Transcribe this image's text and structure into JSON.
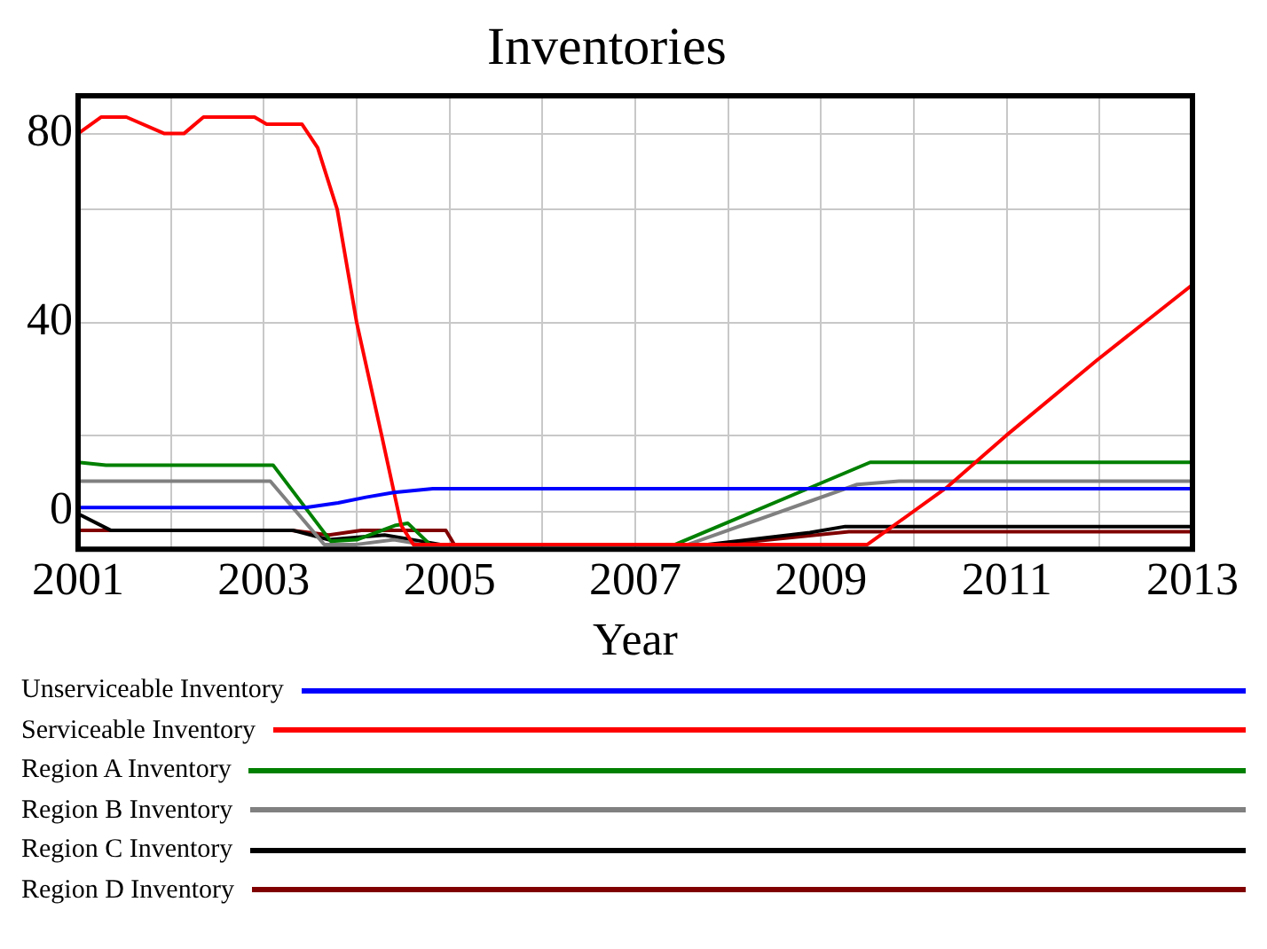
{
  "chart_data": {
    "type": "line",
    "title": "Inventories",
    "xlabel": "Year",
    "xlim": [
      2001,
      2013
    ],
    "xticks": [
      2001,
      {
        "value": 2002,
        "label": null
      },
      2003,
      {
        "value": 2004,
        "label": null
      },
      2005,
      {
        "value": 2006,
        "label": null
      },
      2007,
      {
        "value": 2008,
        "label": null
      },
      2009,
      {
        "value": 2010,
        "label": null
      },
      2011,
      {
        "value": 2012,
        "label": null
      },
      2013
    ],
    "ylim": [
      -8,
      88
    ],
    "yticks": [
      0,
      {
        "value": 16,
        "label": null
      },
      40,
      {
        "value": 64,
        "label": null
      },
      80
    ],
    "grid": true,
    "legend": "bottom",
    "marker": "none",
    "line_style": "solid",
    "series": [
      {
        "name": "Unserviceable Inventory",
        "color": "#0000ff",
        "x": [
          2001,
          2003.45,
          2003.8,
          2004.1,
          2004.4,
          2004.82,
          2013
        ],
        "values": [
          0.8,
          0.8,
          1.8,
          3,
          4,
          4.8,
          4.8
        ]
      },
      {
        "name": "Serviceable Inventory",
        "color": "#ff0000",
        "x": [
          2001,
          2001.25,
          2001.52,
          2001.93,
          2002.14,
          2002.35,
          2002.9,
          2003.03,
          2003.41,
          2003.58,
          2003.79,
          2004,
          2004.27,
          2004.48,
          2004.61,
          2009.5,
          2010.35,
          2010.99,
          2011.97,
          2013
        ],
        "values": [
          80,
          83.5,
          83.5,
          80,
          80,
          83.5,
          83.5,
          82,
          82,
          77,
          64,
          40,
          16,
          -3,
          -7,
          -7,
          5,
          16,
          32,
          48
        ]
      },
      {
        "name": "Region A Inventory",
        "color": "#008000",
        "x": [
          2001,
          2001.3,
          2003.1,
          2003.72,
          2004,
          2004.41,
          2004.55,
          2004.79,
          2007.43,
          2008.88,
          2009.53,
          2013
        ],
        "values": [
          10.4,
          9.8,
          9.8,
          -6.3,
          -6,
          -3,
          -2.5,
          -7,
          -7,
          5,
          10.4,
          10.4
        ]
      },
      {
        "name": "Region B Inventory",
        "color": "#808080",
        "x": [
          2001,
          2003.07,
          2003.65,
          2004,
          2004.4,
          2004.7,
          2007.57,
          2009.39,
          2009.84,
          2013
        ],
        "values": [
          6.4,
          6.4,
          -7,
          -7,
          -6,
          -7,
          -7,
          5.7,
          6.4,
          6.4
        ]
      },
      {
        "name": "Region C Inventory",
        "color": "#000000",
        "x": [
          2001,
          2001.35,
          2003.31,
          2003.7,
          2004.3,
          2004.9,
          2007.78,
          2008.88,
          2009.26,
          2013
        ],
        "values": [
          -0.5,
          -4,
          -4,
          -6,
          -5,
          -7,
          -7,
          -4.5,
          -3.2,
          -3.2
        ]
      },
      {
        "name": "Region D Inventory",
        "color": "#800000",
        "x": [
          2001,
          2003.3,
          2003.7,
          2004.05,
          2004.96,
          2005.05,
          2007.95,
          2009.3,
          2013
        ],
        "values": [
          -4,
          -4,
          -5,
          -4,
          -4,
          -7,
          -7,
          -4.3,
          -4.3
        ]
      }
    ]
  }
}
